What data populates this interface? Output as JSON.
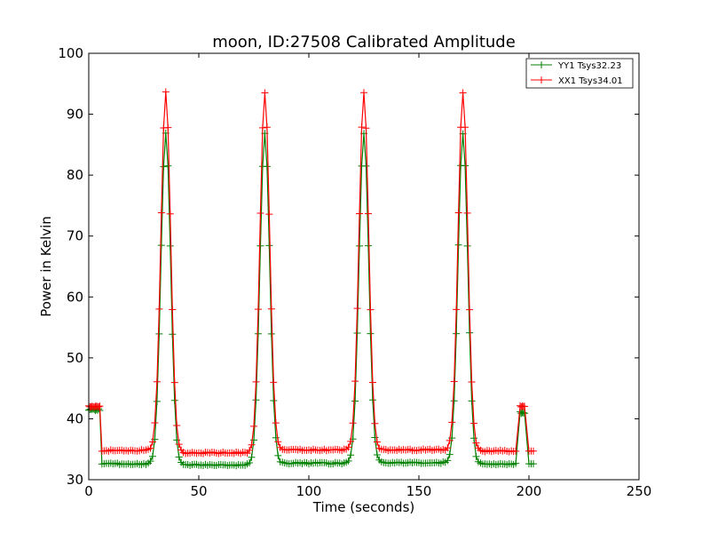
{
  "chart_data": {
    "type": "line",
    "title": "moon, ID:27508 Calibrated Amplitude",
    "xlabel": "Time (seconds)",
    "ylabel": "Power in Kelvin",
    "xlim": [
      0,
      250
    ],
    "ylim": [
      30,
      100
    ],
    "xticks": [
      0,
      50,
      100,
      150,
      200,
      250
    ],
    "yticks": [
      30,
      40,
      50,
      60,
      70,
      80,
      90,
      100
    ],
    "legend_position": "top-right",
    "grid": false,
    "marker": "+",
    "sample_interval": 1,
    "peaks": [
      35,
      80,
      125,
      170
    ],
    "series": [
      {
        "name": "YY1 Tsys32.23",
        "color": "#008000",
        "initial_time": [
          0,
          5
        ],
        "initial_value": 41.5,
        "baseline_segments": [
          {
            "x": [
              6,
              30
            ],
            "value": 32.6
          },
          {
            "x": [
              40,
              75
            ],
            "value": 32.4
          },
          {
            "x": [
              85,
              120
            ],
            "value": 32.7
          },
          {
            "x": [
              130,
              165
            ],
            "value": 32.8
          },
          {
            "x": [
              175,
              194
            ],
            "value": 32.6
          }
        ],
        "peak_value": 86.8,
        "late_time": [
          196,
          198
        ],
        "late_value": 41.0,
        "final_time": [
          200,
          202
        ],
        "final_value": 32.6
      },
      {
        "name": "XX1 Tsys34.01",
        "color": "#ff0000",
        "initial_time": [
          0,
          5
        ],
        "initial_value": 42.0,
        "baseline_segments": [
          {
            "x": [
              6,
              30
            ],
            "value": 34.8
          },
          {
            "x": [
              40,
              75
            ],
            "value": 34.4
          },
          {
            "x": [
              85,
              120
            ],
            "value": 34.9
          },
          {
            "x": [
              130,
              165
            ],
            "value": 34.9
          },
          {
            "x": [
              175,
              194
            ],
            "value": 34.7
          }
        ],
        "peak_value": 93.6,
        "late_time": [
          196,
          198
        ],
        "late_value": 42.0,
        "final_time": [
          200,
          202
        ],
        "final_value": 34.7
      }
    ]
  }
}
